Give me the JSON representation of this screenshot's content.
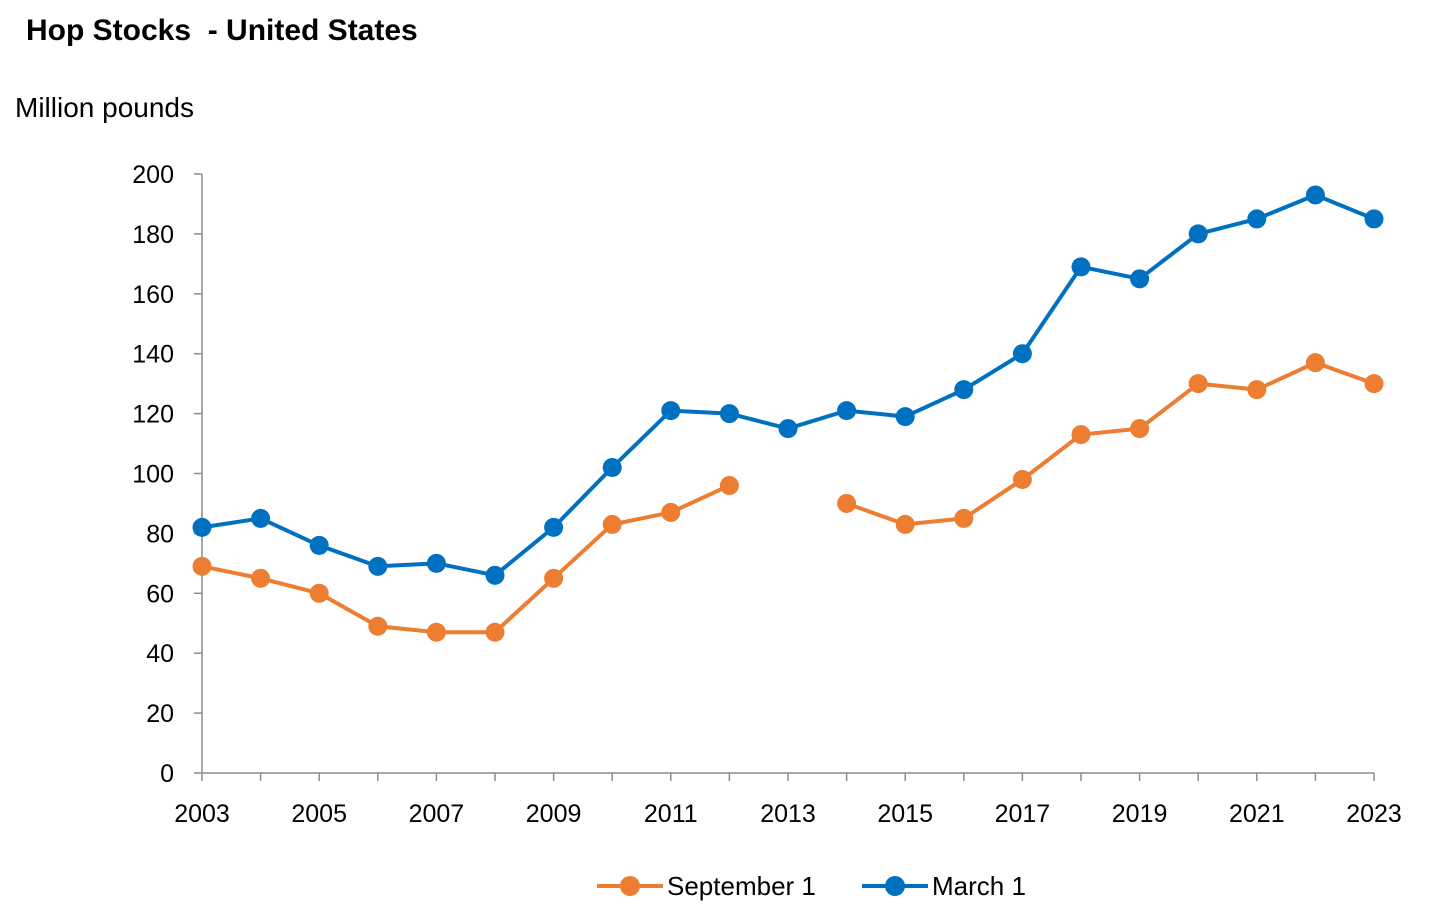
{
  "chart_data": {
    "type": "line",
    "title": "Hop Stocks  - United States",
    "ylabel": "Million pounds",
    "xlabel": "",
    "x": [
      2003,
      2004,
      2005,
      2006,
      2007,
      2008,
      2009,
      2010,
      2011,
      2012,
      2013,
      2014,
      2015,
      2016,
      2017,
      2018,
      2019,
      2020,
      2021,
      2022,
      2023
    ],
    "x_tick_labels": [
      "2003",
      "2005",
      "2007",
      "2009",
      "2011",
      "2013",
      "2015",
      "2017",
      "2019",
      "2021",
      "2023"
    ],
    "y_ticks": [
      0,
      20,
      40,
      60,
      80,
      100,
      120,
      140,
      160,
      180,
      200
    ],
    "ylim": [
      0,
      200
    ],
    "xlim": [
      2003,
      2023
    ],
    "grid": false,
    "legend_position": "bottom",
    "series": [
      {
        "name": "September 1",
        "color": "#ED7D31",
        "values": [
          69,
          65,
          60,
          49,
          47,
          47,
          65,
          83,
          87,
          96,
          null,
          90,
          83,
          85,
          98,
          113,
          115,
          130,
          128,
          137,
          130
        ]
      },
      {
        "name": "March 1",
        "color": "#0070C0",
        "values": [
          82,
          85,
          76,
          69,
          70,
          66,
          82,
          102,
          121,
          120,
          115,
          121,
          119,
          128,
          140,
          169,
          165,
          180,
          185,
          193,
          185
        ]
      }
    ]
  }
}
